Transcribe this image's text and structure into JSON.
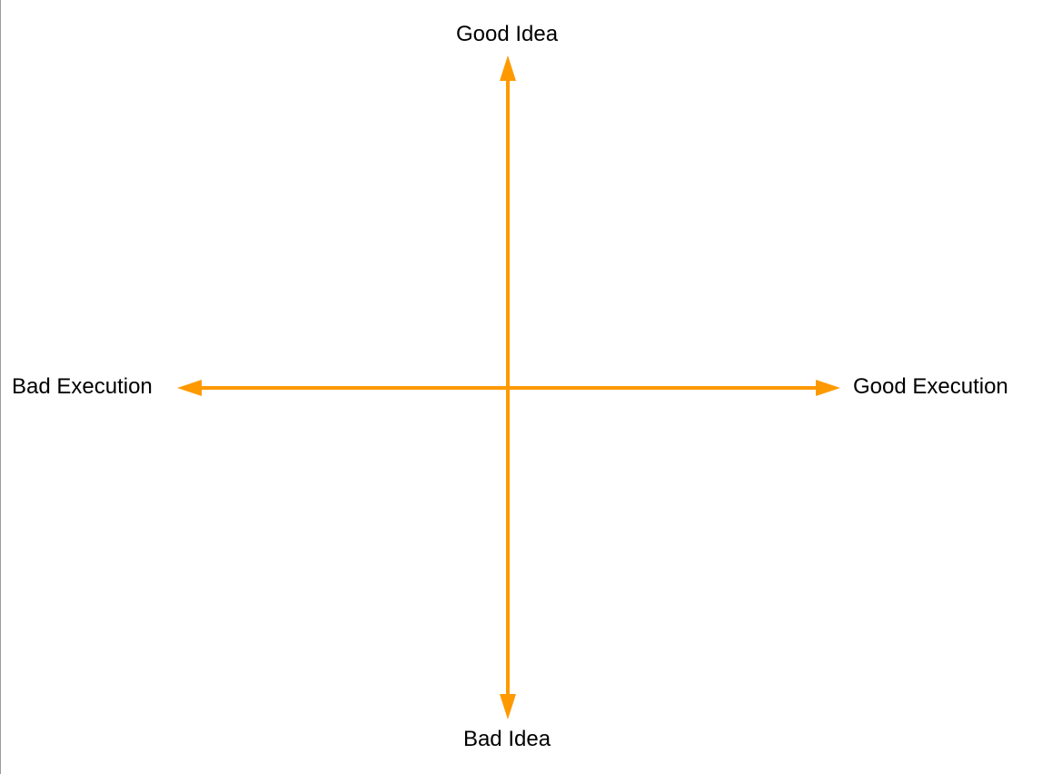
{
  "diagram": {
    "title": "",
    "axes": {
      "vertical": {
        "top_label": "Good Idea",
        "bottom_label": "Bad Idea"
      },
      "horizontal": {
        "left_label": "Bad Execution",
        "right_label": "Good Execution"
      }
    },
    "colors": {
      "axis": "#FF9900",
      "text": "#000000",
      "background": "#FFFFFF"
    }
  }
}
